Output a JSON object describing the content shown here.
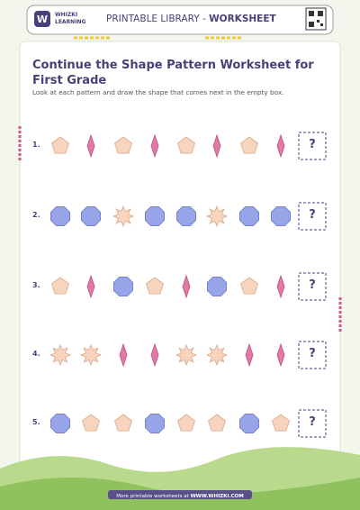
{
  "header": {
    "brand_line1": "WHIZKI",
    "brand_line2": "LEARNING",
    "title_prefix": "PRINTABLE LIBRARY - ",
    "title_bold": "WORKSHEET"
  },
  "worksheet": {
    "title": "Continue the Shape Pattern Worksheet for First Grade",
    "instructions": "Look at each pattern and draw the shape that comes next in the empty box.",
    "rows": [
      {
        "label": "1.",
        "answer": "?"
      },
      {
        "label": "2.",
        "answer": "?"
      },
      {
        "label": "3.",
        "answer": "?"
      },
      {
        "label": "4.",
        "answer": "?"
      },
      {
        "label": "5.",
        "answer": "?"
      }
    ]
  },
  "footer": {
    "text_prefix": "More printable worksheets at ",
    "text_link": "WWW.WHIZKI.COM"
  }
}
